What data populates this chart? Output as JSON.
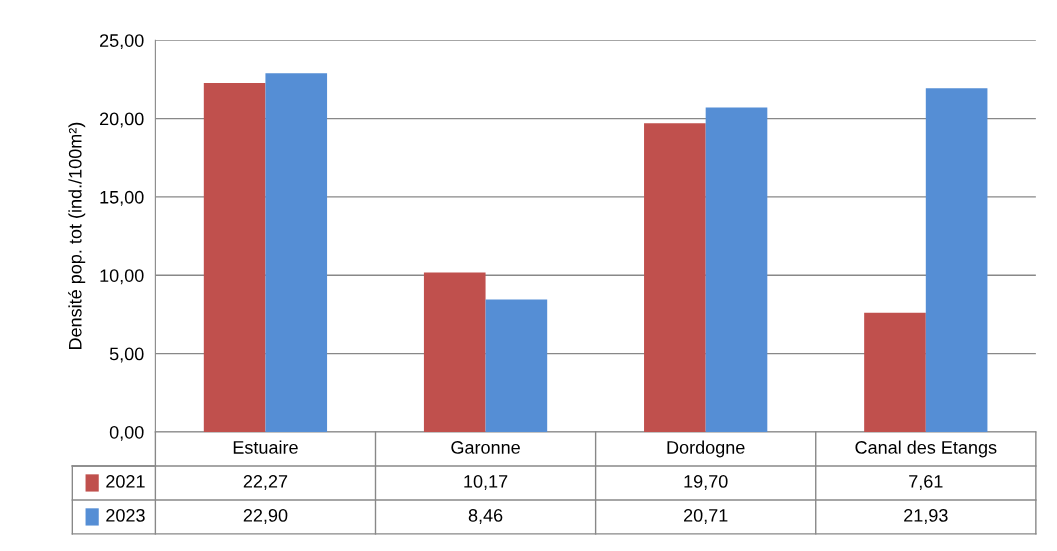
{
  "chart_data": {
    "type": "bar",
    "ylabel": "Densité pop. tot (ind./100m²)",
    "categories": [
      "Estuaire",
      "Garonne",
      "Dordogne",
      "Canal des Etangs"
    ],
    "series": [
      {
        "name": "2021",
        "color": "#c0504d",
        "values": [
          22.27,
          10.17,
          19.7,
          7.61
        ],
        "value_labels": [
          "22,27",
          "10,17",
          "19,70",
          "7,61"
        ]
      },
      {
        "name": "2023",
        "color": "#558ed5",
        "values": [
          22.9,
          8.46,
          20.71,
          21.93
        ],
        "value_labels": [
          "22,90",
          "8,46",
          "20,71",
          "21,93"
        ]
      }
    ],
    "ylim": [
      0,
      25
    ],
    "yticks": [
      {
        "value": 0,
        "label": "0,00"
      },
      {
        "value": 5,
        "label": "5,00"
      },
      {
        "value": 10,
        "label": "10,00"
      },
      {
        "value": 15,
        "label": "15,00"
      },
      {
        "value": 20,
        "label": "20,00"
      },
      {
        "value": 25,
        "label": "25,00"
      }
    ],
    "grid": "y",
    "legend": "bottom"
  }
}
